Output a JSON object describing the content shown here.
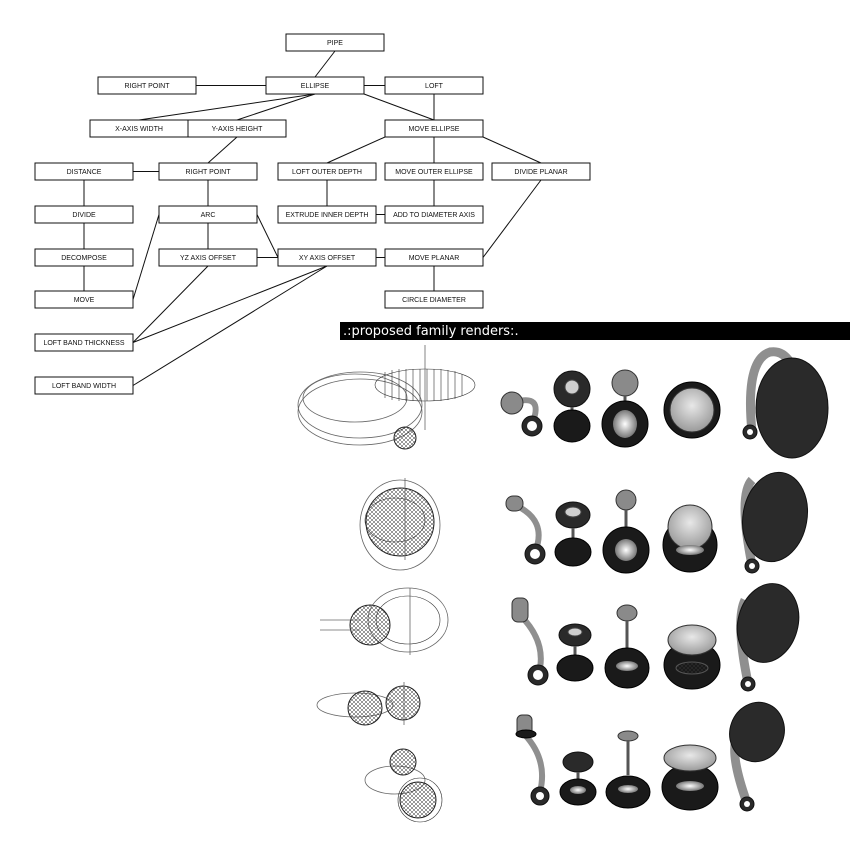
{
  "diagram": {
    "nodes": [
      {
        "id": "pipe",
        "label": "PIPE"
      },
      {
        "id": "right_point_top",
        "label": "RIGHT POINT"
      },
      {
        "id": "ellipse",
        "label": "ELLIPSE"
      },
      {
        "id": "loft",
        "label": "LOFT"
      },
      {
        "id": "x_axis_width",
        "label": "X-AXIS WIDTH"
      },
      {
        "id": "y_axis_height",
        "label": "Y-AXIS HEIGHT"
      },
      {
        "id": "move_ellipse",
        "label": "MOVE ELLIPSE"
      },
      {
        "id": "distance",
        "label": "DISTANCE"
      },
      {
        "id": "right_point_mid",
        "label": "RIGHT POINT"
      },
      {
        "id": "loft_outer_depth",
        "label": "LOFT OUTER DEPTH"
      },
      {
        "id": "move_outer_ellipse",
        "label": "MOVE OUTER ELLIPSE"
      },
      {
        "id": "divide_planar",
        "label": "DIVIDE PLANAR"
      },
      {
        "id": "divide",
        "label": "DIVIDE"
      },
      {
        "id": "arc",
        "label": "ARC"
      },
      {
        "id": "extrude_inner_depth",
        "label": "EXTRUDE INNER DEPTH"
      },
      {
        "id": "add_to_diameter_axis",
        "label": "ADD TO DIAMETER AXIS"
      },
      {
        "id": "decompose",
        "label": "DECOMPOSE"
      },
      {
        "id": "yz_axis_offset",
        "label": "YZ AXIS OFFSET"
      },
      {
        "id": "xy_axis_offset",
        "label": "XY AXIS OFFSET"
      },
      {
        "id": "move_planar",
        "label": "MOVE PLANAR"
      },
      {
        "id": "move",
        "label": "MOVE"
      },
      {
        "id": "circle_diameter",
        "label": "CIRCLE DIAMETER"
      },
      {
        "id": "loft_band_thickness",
        "label": "LOFT BAND THICKNESS"
      },
      {
        "id": "loft_band_width",
        "label": "LOFT BAND WIDTH"
      }
    ],
    "edges": [
      [
        "pipe",
        "ellipse"
      ],
      [
        "right_point_top",
        "ellipse"
      ],
      [
        "ellipse",
        "loft"
      ],
      [
        "ellipse",
        "x_axis_width"
      ],
      [
        "ellipse",
        "y_axis_height"
      ],
      [
        "ellipse",
        "move_ellipse"
      ],
      [
        "loft",
        "move_ellipse"
      ],
      [
        "move_ellipse",
        "loft_outer_depth"
      ],
      [
        "move_ellipse",
        "move_outer_ellipse"
      ],
      [
        "move_ellipse",
        "divide_planar"
      ],
      [
        "y_axis_height",
        "right_point_mid"
      ],
      [
        "distance",
        "right_point_mid"
      ],
      [
        "right_point_mid",
        "arc"
      ],
      [
        "loft_outer_depth",
        "extrude_inner_depth"
      ],
      [
        "extrude_inner_depth",
        "add_to_diameter_axis"
      ],
      [
        "move_outer_ellipse",
        "add_to_diameter_axis"
      ],
      [
        "divide_planar",
        "move_planar"
      ],
      [
        "distance",
        "divide"
      ],
      [
        "divide",
        "decompose"
      ],
      [
        "decompose",
        "move"
      ],
      [
        "arc",
        "move"
      ],
      [
        "arc",
        "yz_axis_offset"
      ],
      [
        "arc",
        "xy_axis_offset"
      ],
      [
        "yz_axis_offset",
        "xy_axis_offset"
      ],
      [
        "xy_axis_offset",
        "move_planar"
      ],
      [
        "move_planar",
        "circle_diameter"
      ],
      [
        "yz_axis_offset",
        "loft_band_thickness"
      ],
      [
        "xy_axis_offset",
        "loft_band_thickness"
      ],
      [
        "xy_axis_offset",
        "loft_band_width"
      ]
    ]
  },
  "renders": {
    "header": ".:proposed family renders:.",
    "rows": 5,
    "colors": {
      "dark": "#2a2a2a",
      "band": "#8f8f8f",
      "light": "#cfcfcf"
    }
  }
}
